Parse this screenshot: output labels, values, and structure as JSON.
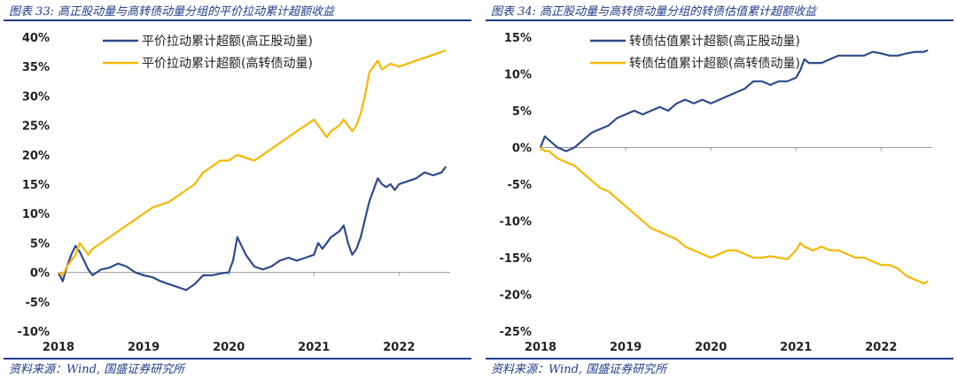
{
  "panels": [
    {
      "caption": "图表 33: 高正股动量与高转债动量分组的平价拉动累计超额收益",
      "source": "资料来源：Wind, 国盛证券研究所"
    },
    {
      "caption": "图表 34: 高正股动量与高转债动量分组的转债估值累计超额收益",
      "source": "资料来源：Wind, 国盛证券研究所"
    }
  ],
  "colors": {
    "navy": "#2e4a8c",
    "gold": "#f5b800",
    "accent": "#1f3c88"
  },
  "chart_data": [
    {
      "type": "line",
      "x": [
        "2018",
        "2019",
        "2020",
        "2021",
        "2022"
      ],
      "ylim": [
        -0.1,
        0.4
      ],
      "yticks": [
        "40%",
        "35%",
        "30%",
        "25%",
        "20%",
        "15%",
        "10%",
        "5%",
        "0%",
        "-5%",
        "-10%"
      ],
      "ytick_values": [
        0.4,
        0.35,
        0.3,
        0.25,
        0.2,
        0.15,
        0.1,
        0.05,
        0.0,
        -0.05,
        -0.1
      ],
      "legend_position": "top-right",
      "series": [
        {
          "name": "平价拉动累计超额(高正股动量)",
          "color": "#2e4a8c",
          "points": [
            [
              2018.0,
              0.0
            ],
            [
              2018.05,
              -0.015
            ],
            [
              2018.1,
              0.01
            ],
            [
              2018.15,
              0.03
            ],
            [
              2018.2,
              0.045
            ],
            [
              2018.25,
              0.035
            ],
            [
              2018.3,
              0.02
            ],
            [
              2018.35,
              0.005
            ],
            [
              2018.4,
              -0.005
            ],
            [
              2018.5,
              0.005
            ],
            [
              2018.6,
              0.008
            ],
            [
              2018.7,
              0.015
            ],
            [
              2018.8,
              0.01
            ],
            [
              2018.9,
              0.0
            ],
            [
              2019.0,
              -0.005
            ],
            [
              2019.1,
              -0.008
            ],
            [
              2019.2,
              -0.015
            ],
            [
              2019.3,
              -0.02
            ],
            [
              2019.4,
              -0.025
            ],
            [
              2019.5,
              -0.03
            ],
            [
              2019.6,
              -0.02
            ],
            [
              2019.7,
              -0.005
            ],
            [
              2019.8,
              -0.005
            ],
            [
              2019.9,
              -0.002
            ],
            [
              2020.0,
              0.0
            ],
            [
              2020.05,
              0.02
            ],
            [
              2020.1,
              0.06
            ],
            [
              2020.15,
              0.045
            ],
            [
              2020.2,
              0.03
            ],
            [
              2020.25,
              0.02
            ],
            [
              2020.3,
              0.01
            ],
            [
              2020.4,
              0.005
            ],
            [
              2020.5,
              0.01
            ],
            [
              2020.6,
              0.02
            ],
            [
              2020.7,
              0.025
            ],
            [
              2020.8,
              0.02
            ],
            [
              2020.9,
              0.025
            ],
            [
              2021.0,
              0.03
            ],
            [
              2021.05,
              0.05
            ],
            [
              2021.1,
              0.04
            ],
            [
              2021.2,
              0.06
            ],
            [
              2021.3,
              0.07
            ],
            [
              2021.35,
              0.08
            ],
            [
              2021.4,
              0.05
            ],
            [
              2021.45,
              0.03
            ],
            [
              2021.5,
              0.04
            ],
            [
              2021.55,
              0.06
            ],
            [
              2021.6,
              0.09
            ],
            [
              2021.65,
              0.12
            ],
            [
              2021.7,
              0.14
            ],
            [
              2021.75,
              0.16
            ],
            [
              2021.8,
              0.15
            ],
            [
              2021.85,
              0.145
            ],
            [
              2021.9,
              0.15
            ],
            [
              2021.95,
              0.14
            ],
            [
              2022.0,
              0.15
            ],
            [
              2022.1,
              0.155
            ],
            [
              2022.2,
              0.16
            ],
            [
              2022.3,
              0.17
            ],
            [
              2022.4,
              0.165
            ],
            [
              2022.5,
              0.17
            ],
            [
              2022.55,
              0.18
            ]
          ]
        },
        {
          "name": "平价拉动累计超额(高转债动量)",
          "color": "#f5b800",
          "points": [
            [
              2018.0,
              0.0
            ],
            [
              2018.05,
              -0.005
            ],
            [
              2018.1,
              0.01
            ],
            [
              2018.15,
              0.02
            ],
            [
              2018.2,
              0.03
            ],
            [
              2018.25,
              0.05
            ],
            [
              2018.3,
              0.04
            ],
            [
              2018.35,
              0.03
            ],
            [
              2018.4,
              0.04
            ],
            [
              2018.5,
              0.05
            ],
            [
              2018.6,
              0.06
            ],
            [
              2018.7,
              0.07
            ],
            [
              2018.8,
              0.08
            ],
            [
              2018.9,
              0.09
            ],
            [
              2019.0,
              0.1
            ],
            [
              2019.1,
              0.11
            ],
            [
              2019.2,
              0.115
            ],
            [
              2019.3,
              0.12
            ],
            [
              2019.4,
              0.13
            ],
            [
              2019.5,
              0.14
            ],
            [
              2019.6,
              0.15
            ],
            [
              2019.7,
              0.17
            ],
            [
              2019.8,
              0.18
            ],
            [
              2019.9,
              0.19
            ],
            [
              2020.0,
              0.19
            ],
            [
              2020.1,
              0.2
            ],
            [
              2020.2,
              0.195
            ],
            [
              2020.3,
              0.19
            ],
            [
              2020.4,
              0.2
            ],
            [
              2020.5,
              0.21
            ],
            [
              2020.6,
              0.22
            ],
            [
              2020.7,
              0.23
            ],
            [
              2020.8,
              0.24
            ],
            [
              2020.9,
              0.25
            ],
            [
              2021.0,
              0.26
            ],
            [
              2021.05,
              0.25
            ],
            [
              2021.1,
              0.24
            ],
            [
              2021.15,
              0.23
            ],
            [
              2021.2,
              0.24
            ],
            [
              2021.3,
              0.25
            ],
            [
              2021.35,
              0.26
            ],
            [
              2021.4,
              0.25
            ],
            [
              2021.45,
              0.24
            ],
            [
              2021.5,
              0.25
            ],
            [
              2021.55,
              0.27
            ],
            [
              2021.6,
              0.3
            ],
            [
              2021.65,
              0.34
            ],
            [
              2021.7,
              0.35
            ],
            [
              2021.75,
              0.36
            ],
            [
              2021.8,
              0.345
            ],
            [
              2021.9,
              0.355
            ],
            [
              2022.0,
              0.35
            ],
            [
              2022.1,
              0.355
            ],
            [
              2022.2,
              0.36
            ],
            [
              2022.3,
              0.365
            ],
            [
              2022.4,
              0.37
            ],
            [
              2022.5,
              0.375
            ],
            [
              2022.55,
              0.378
            ]
          ]
        }
      ]
    },
    {
      "type": "line",
      "x": [
        "2018",
        "2019",
        "2020",
        "2021",
        "2022"
      ],
      "ylim": [
        -0.25,
        0.15
      ],
      "yticks": [
        "15%",
        "10%",
        "5%",
        "0%",
        "-5%",
        "-10%",
        "-15%",
        "-20%",
        "-25%"
      ],
      "ytick_values": [
        0.15,
        0.1,
        0.05,
        0.0,
        -0.05,
        -0.1,
        -0.15,
        -0.2,
        -0.25
      ],
      "legend_position": "top-right",
      "series": [
        {
          "name": "转债估值累计超额(高正股动量)",
          "color": "#2e4a8c",
          "points": [
            [
              2018.0,
              0.0
            ],
            [
              2018.05,
              0.015
            ],
            [
              2018.1,
              0.01
            ],
            [
              2018.15,
              0.005
            ],
            [
              2018.2,
              0.0
            ],
            [
              2018.3,
              -0.005
            ],
            [
              2018.4,
              0.0
            ],
            [
              2018.5,
              0.01
            ],
            [
              2018.6,
              0.02
            ],
            [
              2018.7,
              0.025
            ],
            [
              2018.8,
              0.03
            ],
            [
              2018.9,
              0.04
            ],
            [
              2019.0,
              0.045
            ],
            [
              2019.1,
              0.05
            ],
            [
              2019.2,
              0.045
            ],
            [
              2019.3,
              0.05
            ],
            [
              2019.4,
              0.055
            ],
            [
              2019.5,
              0.05
            ],
            [
              2019.6,
              0.06
            ],
            [
              2019.7,
              0.065
            ],
            [
              2019.8,
              0.06
            ],
            [
              2019.9,
              0.065
            ],
            [
              2020.0,
              0.06
            ],
            [
              2020.1,
              0.065
            ],
            [
              2020.2,
              0.07
            ],
            [
              2020.3,
              0.075
            ],
            [
              2020.4,
              0.08
            ],
            [
              2020.5,
              0.09
            ],
            [
              2020.6,
              0.09
            ],
            [
              2020.7,
              0.085
            ],
            [
              2020.8,
              0.09
            ],
            [
              2020.9,
              0.09
            ],
            [
              2021.0,
              0.095
            ],
            [
              2021.05,
              0.105
            ],
            [
              2021.1,
              0.12
            ],
            [
              2021.15,
              0.115
            ],
            [
              2021.2,
              0.115
            ],
            [
              2021.3,
              0.115
            ],
            [
              2021.4,
              0.12
            ],
            [
              2021.5,
              0.125
            ],
            [
              2021.6,
              0.125
            ],
            [
              2021.7,
              0.125
            ],
            [
              2021.8,
              0.125
            ],
            [
              2021.9,
              0.13
            ],
            [
              2022.0,
              0.128
            ],
            [
              2022.1,
              0.125
            ],
            [
              2022.2,
              0.125
            ],
            [
              2022.3,
              0.128
            ],
            [
              2022.4,
              0.13
            ],
            [
              2022.5,
              0.13
            ],
            [
              2022.55,
              0.132
            ]
          ]
        },
        {
          "name": "转债估值累计超额(高转债动量)",
          "color": "#f5b800",
          "points": [
            [
              2018.0,
              0.0
            ],
            [
              2018.05,
              -0.005
            ],
            [
              2018.1,
              -0.005
            ],
            [
              2018.2,
              -0.015
            ],
            [
              2018.3,
              -0.02
            ],
            [
              2018.4,
              -0.025
            ],
            [
              2018.5,
              -0.035
            ],
            [
              2018.6,
              -0.045
            ],
            [
              2018.7,
              -0.055
            ],
            [
              2018.8,
              -0.06
            ],
            [
              2018.9,
              -0.07
            ],
            [
              2019.0,
              -0.08
            ],
            [
              2019.1,
              -0.09
            ],
            [
              2019.2,
              -0.1
            ],
            [
              2019.3,
              -0.11
            ],
            [
              2019.4,
              -0.115
            ],
            [
              2019.5,
              -0.12
            ],
            [
              2019.6,
              -0.125
            ],
            [
              2019.7,
              -0.135
            ],
            [
              2019.8,
              -0.14
            ],
            [
              2019.9,
              -0.145
            ],
            [
              2020.0,
              -0.15
            ],
            [
              2020.1,
              -0.145
            ],
            [
              2020.2,
              -0.14
            ],
            [
              2020.3,
              -0.14
            ],
            [
              2020.4,
              -0.145
            ],
            [
              2020.5,
              -0.15
            ],
            [
              2020.6,
              -0.15
            ],
            [
              2020.7,
              -0.148
            ],
            [
              2020.8,
              -0.15
            ],
            [
              2020.9,
              -0.152
            ],
            [
              2021.0,
              -0.14
            ],
            [
              2021.05,
              -0.13
            ],
            [
              2021.1,
              -0.135
            ],
            [
              2021.2,
              -0.14
            ],
            [
              2021.3,
              -0.135
            ],
            [
              2021.4,
              -0.14
            ],
            [
              2021.5,
              -0.14
            ],
            [
              2021.6,
              -0.145
            ],
            [
              2021.7,
              -0.15
            ],
            [
              2021.8,
              -0.15
            ],
            [
              2021.9,
              -0.155
            ],
            [
              2022.0,
              -0.16
            ],
            [
              2022.1,
              -0.16
            ],
            [
              2022.2,
              -0.165
            ],
            [
              2022.3,
              -0.175
            ],
            [
              2022.4,
              -0.18
            ],
            [
              2022.5,
              -0.185
            ],
            [
              2022.55,
              -0.182
            ]
          ]
        }
      ]
    }
  ]
}
